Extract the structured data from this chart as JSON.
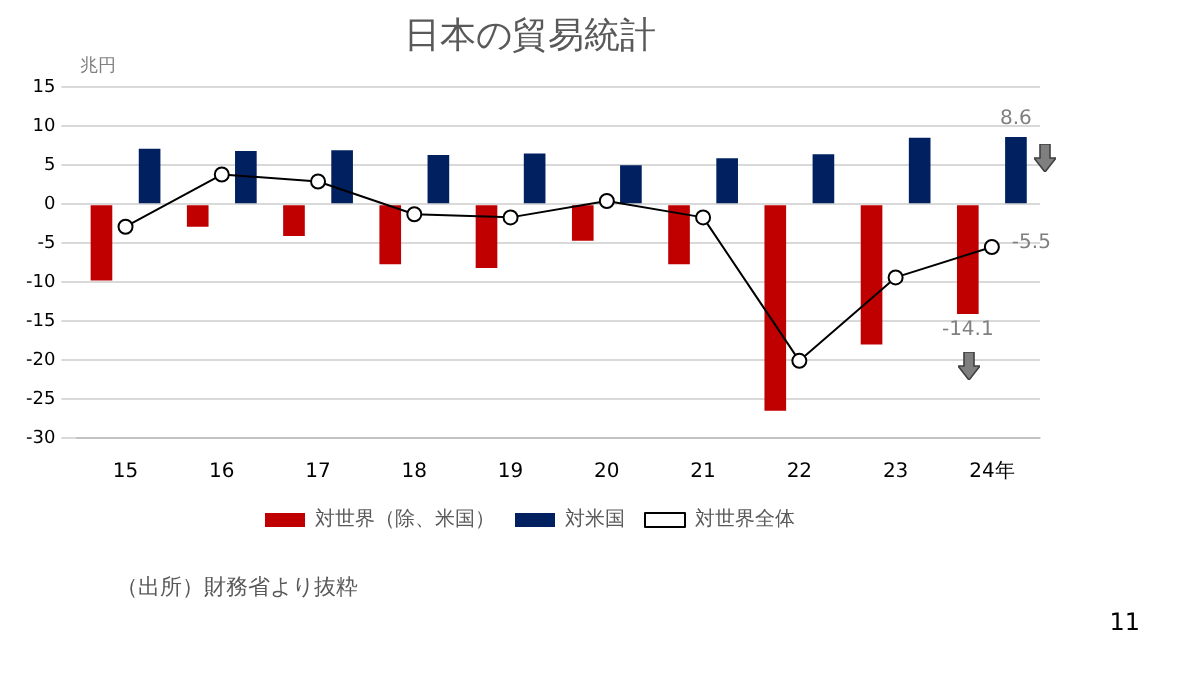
{
  "chart_data": {
    "type": "bar",
    "title": "日本の貿易統計",
    "ylabel": "兆円",
    "categories": [
      "15",
      "16",
      "17",
      "18",
      "19",
      "20",
      "21",
      "22",
      "23",
      "24年"
    ],
    "series": [
      {
        "name": "対世界（除、米国）",
        "color": "#c00000",
        "values": [
          -9.8,
          -2.9,
          -4.1,
          -7.7,
          -8.2,
          -4.7,
          -7.7,
          -26.5,
          -18.0,
          -14.1
        ],
        "value_labels": [
          null,
          null,
          null,
          null,
          null,
          null,
          null,
          null,
          null,
          "-14.1"
        ]
      },
      {
        "name": "対米国",
        "color": "#002060",
        "values": [
          7.1,
          6.8,
          6.9,
          6.3,
          6.5,
          5.0,
          5.9,
          6.4,
          8.5,
          8.6
        ],
        "value_labels": [
          null,
          null,
          null,
          null,
          null,
          null,
          null,
          null,
          null,
          "8.6"
        ]
      },
      {
        "name": "対世界全体",
        "type": "line",
        "color": "#000000",
        "marker": "circle",
        "values": [
          -2.9,
          3.8,
          2.9,
          -1.3,
          -1.7,
          0.4,
          -1.7,
          -20.1,
          -9.4,
          -5.5
        ],
        "value_labels": [
          null,
          null,
          null,
          null,
          null,
          null,
          null,
          null,
          null,
          "-5.5"
        ]
      }
    ],
    "ylim": [
      -30,
      15
    ],
    "yticks": [
      -30,
      -25,
      -20,
      -15,
      -10,
      -5,
      0,
      5,
      10,
      15
    ],
    "grid": "y",
    "legend": "bottom",
    "annotations": [
      "（出所）財務省より抜粋",
      "11"
    ]
  }
}
